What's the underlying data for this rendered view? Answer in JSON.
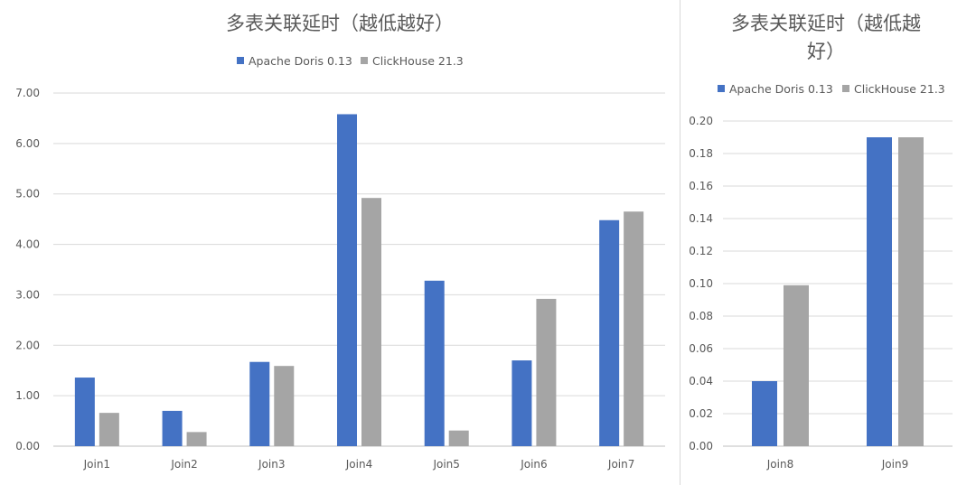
{
  "colors": {
    "doris": "#4472c4",
    "clickhouse": "#a5a5a5",
    "text": "#595959",
    "grid": "#d9d9d9"
  },
  "chart_data": [
    {
      "type": "bar",
      "title": "多表关联延时（越低越好）",
      "categories": [
        "Join1",
        "Join2",
        "Join3",
        "Join4",
        "Join5",
        "Join6",
        "Join7"
      ],
      "series": [
        {
          "name": "Apache Doris 0.13",
          "values": [
            1.36,
            0.7,
            1.67,
            6.58,
            3.28,
            1.7,
            4.48
          ]
        },
        {
          "name": "ClickHouse 21.3",
          "values": [
            0.66,
            0.28,
            1.59,
            4.92,
            0.31,
            2.92,
            4.65
          ]
        }
      ],
      "ylim": [
        0,
        7
      ],
      "yticks": [
        "0.00",
        "1.00",
        "2.00",
        "3.00",
        "4.00",
        "5.00",
        "6.00",
        "7.00"
      ],
      "xlabel": "",
      "ylabel": "",
      "grid": true,
      "legend": "top-center"
    },
    {
      "type": "bar",
      "title_lines": [
        "多表关联延时（越低越",
        "好）"
      ],
      "categories": [
        "Join8",
        "Join9"
      ],
      "series": [
        {
          "name": "Apache Doris 0.13",
          "values": [
            0.04,
            0.19
          ]
        },
        {
          "name": "ClickHouse 21.3",
          "values": [
            0.099,
            0.19
          ]
        }
      ],
      "ylim": [
        0,
        0.2
      ],
      "yticks": [
        "0.00",
        "0.02",
        "0.04",
        "0.06",
        "0.08",
        "0.10",
        "0.12",
        "0.14",
        "0.16",
        "0.18",
        "0.20"
      ],
      "xlabel": "",
      "ylabel": "",
      "grid": true,
      "legend": "top-center"
    }
  ]
}
